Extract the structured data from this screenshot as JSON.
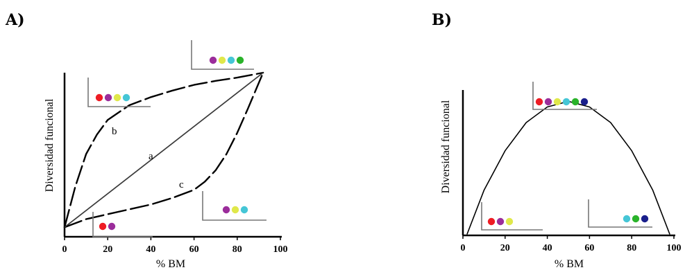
{
  "chart_data": [
    {
      "panel": "A)",
      "type": "line",
      "xlabel": "% BM",
      "ylabel": "Diversidad funcional",
      "xlim": [
        0,
        100
      ],
      "xticks": [
        "0",
        "20",
        "40",
        "60",
        "80",
        "100"
      ],
      "series": [
        {
          "name": "a",
          "style": "solid",
          "x": [
            0,
            92
          ],
          "y": [
            0.05,
            1.0
          ]
        },
        {
          "name": "b",
          "style": "dashed",
          "x": [
            0,
            5,
            10,
            15,
            20,
            30,
            40,
            50,
            60,
            70,
            80,
            92
          ],
          "y": [
            0.05,
            0.3,
            0.5,
            0.62,
            0.71,
            0.8,
            0.85,
            0.89,
            0.925,
            0.95,
            0.97,
            1.0
          ]
        },
        {
          "name": "c",
          "style": "dashed",
          "x": [
            0,
            10,
            20,
            30,
            40,
            50,
            60,
            65,
            70,
            75,
            80,
            85,
            92
          ],
          "y": [
            0.05,
            0.1,
            0.13,
            0.16,
            0.19,
            0.23,
            0.28,
            0.33,
            0.4,
            0.5,
            0.63,
            0.78,
            1.0
          ]
        },
        {
          "name": "",
          "style": "thin",
          "x": [
            0,
            92
          ],
          "y": [
            0.05,
            1.0
          ]
        }
      ],
      "legend_boxes": [
        {
          "colors": [
            "#ee1c24",
            "#9b2d9b",
            "#e0e84a",
            "#45c6d6"
          ]
        },
        {
          "colors": [
            "#9b2d9b",
            "#e0e84a",
            "#45c6d6",
            "#2ab32a"
          ]
        },
        {
          "colors": [
            "#9b2d9b",
            "#e0e84a",
            "#45c6d6"
          ]
        },
        {
          "colors": [
            "#ee1c24",
            "#9b2d9b"
          ]
        }
      ]
    },
    {
      "panel": "B)",
      "type": "line",
      "xlabel": "% BM",
      "ylabel": "Diversidad funcional",
      "xlim": [
        0,
        100
      ],
      "xticks": [
        "0",
        "20",
        "40",
        "60",
        "80",
        "100"
      ],
      "series": [
        {
          "name": "",
          "style": "solid",
          "x": [
            2,
            10,
            20,
            30,
            40,
            50,
            60,
            70,
            80,
            90,
            98
          ],
          "y": [
            0.0,
            0.31,
            0.59,
            0.79,
            0.9,
            0.94,
            0.9,
            0.79,
            0.59,
            0.31,
            0.0
          ]
        }
      ],
      "legend_boxes": [
        {
          "colors": [
            "#ee1c24",
            "#9b2d9b",
            "#e0e84a",
            "#45c6d6",
            "#2ab32a",
            "#1a1f8c"
          ]
        },
        {
          "colors": [
            "#ee1c24",
            "#9b2d9b",
            "#e0e84a"
          ]
        },
        {
          "colors": [
            "#45c6d6",
            "#2ab32a",
            "#1a1f8c"
          ]
        }
      ]
    }
  ]
}
